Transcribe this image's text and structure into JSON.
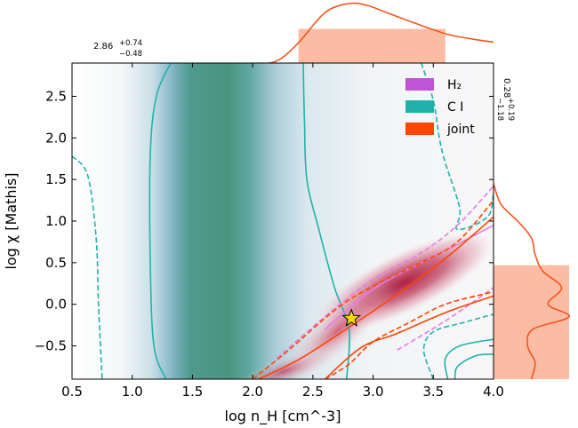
{
  "chart_data": {
    "type": "contour-corner",
    "main_panel": {
      "xlabel": "log n_H [cm^-3]",
      "ylabel": "log χ [Mathis]",
      "xlim": [
        0.5,
        4.0
      ],
      "ylim": [
        -0.9,
        2.9
      ],
      "xticks": [
        0.5,
        1.0,
        1.5,
        2.0,
        2.5,
        3.0,
        3.5,
        4.0
      ],
      "xtick_labels": [
        "0.5",
        "1.0",
        "1.5",
        "2.0",
        "2.5",
        "3.0",
        "3.5",
        "4.0"
      ],
      "yticks": [
        -0.5,
        0.0,
        0.5,
        1.0,
        1.5,
        2.0,
        2.5
      ],
      "ytick_labels": [
        "−0.5",
        "0.0",
        "0.5",
        "1.0",
        "1.5",
        "2.0",
        "2.5"
      ],
      "legend": {
        "position": "top-right",
        "entries": [
          {
            "label": "H₂",
            "color": "#bf55d6"
          },
          {
            "label": "C I",
            "color": "#20b2aa"
          },
          {
            "label": "joint",
            "color": "#ff4500"
          }
        ]
      },
      "best_fit_star": {
        "x": 2.82,
        "y": -0.17,
        "color": "#ffd700"
      },
      "ci_contours": [
        {
          "level": "inner",
          "style": "solid",
          "color": "#20b2aa",
          "points": [
            [
              1.32,
              2.9
            ],
            [
              1.2,
              2.5
            ],
            [
              1.15,
              1.8
            ],
            [
              1.15,
              0.5
            ],
            [
              1.18,
              -0.5
            ],
            [
              1.28,
              -0.9
            ]
          ]
        },
        {
          "level": "inner",
          "style": "solid",
          "color": "#20b2aa",
          "points": [
            [
              2.42,
              2.9
            ],
            [
              2.43,
              2.2
            ],
            [
              2.45,
              1.5
            ],
            [
              2.55,
              0.9
            ],
            [
              2.68,
              0.2
            ],
            [
              2.8,
              -0.3
            ],
            [
              2.78,
              -0.9
            ]
          ]
        },
        {
          "level": "outer",
          "style": "dashed",
          "color": "#20b2aa",
          "points": [
            [
              0.5,
              1.78
            ],
            [
              0.63,
              1.55
            ],
            [
              0.7,
              0.8
            ],
            [
              0.72,
              0.0
            ],
            [
              0.75,
              -0.9
            ]
          ]
        },
        {
          "level": "outer",
          "style": "dashed",
          "color": "#20b2aa",
          "points": [
            [
              3.4,
              2.9
            ],
            [
              3.5,
              2.45
            ],
            [
              3.55,
              2.0
            ],
            [
              3.6,
              1.7
            ],
            [
              3.72,
              1.15
            ],
            [
              3.7,
              0.9
            ],
            [
              3.95,
              1.05
            ],
            [
              4.0,
              1.35
            ]
          ]
        },
        {
          "level": "outer",
          "style": "dashed",
          "color": "#20b2aa",
          "points": [
            [
              3.5,
              -0.9
            ],
            [
              3.42,
              -0.55
            ],
            [
              3.5,
              -0.33
            ],
            [
              3.75,
              -0.22
            ],
            [
              4.0,
              -0.12
            ]
          ]
        },
        {
          "level": "inner",
          "style": "solid",
          "color": "#20b2aa",
          "points": [
            [
              3.62,
              -0.9
            ],
            [
              3.6,
              -0.65
            ],
            [
              3.72,
              -0.5
            ],
            [
              4.0,
              -0.42
            ]
          ]
        },
        {
          "level": "inner",
          "style": "solid",
          "color": "#20b2aa",
          "points": [
            [
              3.68,
              -0.9
            ],
            [
              3.7,
              -0.75
            ],
            [
              3.85,
              -0.62
            ],
            [
              4.0,
              -0.6
            ]
          ]
        }
      ],
      "h2_contours": [
        {
          "level": "outer",
          "style": "dashed",
          "color": "#e57ce8",
          "points": [
            [
              2.2,
              -0.65
            ],
            [
              2.6,
              -0.15
            ],
            [
              3.0,
              0.3
            ],
            [
              3.4,
              0.62
            ],
            [
              3.7,
              0.95
            ],
            [
              4.0,
              1.42
            ]
          ]
        },
        {
          "level": "outer",
          "style": "dashed",
          "color": "#e57ce8",
          "points": [
            [
              3.2,
              -0.55
            ],
            [
              3.6,
              -0.2
            ],
            [
              4.0,
              0.2
            ]
          ]
        },
        {
          "level": "inner",
          "style": "solid",
          "color": "#e57ce8",
          "points": [
            [
              2.6,
              -0.3
            ],
            [
              3.0,
              0.18
            ],
            [
              3.4,
              0.5
            ],
            [
              3.7,
              0.72
            ],
            [
              4.0,
              0.95
            ]
          ]
        }
      ],
      "joint_contours": [
        {
          "level": "outer",
          "style": "dashed",
          "color": "#ff4500",
          "points": [
            [
              2.0,
              -0.9
            ],
            [
              2.3,
              -0.55
            ],
            [
              2.7,
              -0.05
            ],
            [
              3.0,
              0.22
            ],
            [
              3.4,
              0.5
            ],
            [
              3.7,
              0.75
            ],
            [
              4.0,
              1.25
            ]
          ]
        },
        {
          "level": "outer",
          "style": "dashed",
          "color": "#ff4500",
          "points": [
            [
              2.6,
              -0.9
            ],
            [
              2.8,
              -0.72
            ],
            [
              3.0,
              -0.45
            ],
            [
              3.3,
              -0.22
            ],
            [
              3.6,
              0.0
            ],
            [
              4.0,
              0.15
            ]
          ]
        },
        {
          "level": "inner",
          "style": "solid",
          "color": "#ff4500",
          "points": [
            [
              2.05,
              -0.9
            ],
            [
              2.4,
              -0.65
            ],
            [
              2.9,
              -0.18
            ],
            [
              3.2,
              0.12
            ],
            [
              3.6,
              0.55
            ],
            [
              4.0,
              1.05
            ]
          ]
        },
        {
          "level": "inner",
          "style": "solid",
          "color": "#ff4500",
          "points": [
            [
              2.6,
              -0.9
            ],
            [
              2.9,
              -0.52
            ],
            [
              3.2,
              -0.35
            ],
            [
              3.6,
              -0.1
            ],
            [
              4.0,
              0.1
            ]
          ]
        }
      ]
    },
    "top_marginal": {
      "parameter": "log n_H",
      "annotation_value": "2.86",
      "annotation_upper": "+0.74",
      "annotation_lower": "−0.48",
      "shaded_range": [
        2.38,
        3.6
      ],
      "x": [
        0.5,
        1.0,
        1.5,
        2.0,
        2.2,
        2.38,
        2.6,
        2.8,
        2.95,
        3.1,
        3.3,
        3.6,
        3.8,
        4.0
      ],
      "density": [
        0.0,
        0.0,
        0.0,
        0.01,
        0.05,
        0.35,
        0.85,
        1.0,
        0.97,
        0.86,
        0.71,
        0.5,
        0.42,
        0.36
      ]
    },
    "right_marginal": {
      "parameter": "log χ",
      "annotation_value": "0.28",
      "annotation_upper": "+0.19",
      "annotation_lower": "−1.18",
      "shaded_range": [
        -0.9,
        0.47
      ],
      "y": [
        -0.9,
        -0.7,
        -0.5,
        -0.3,
        -0.15,
        0.0,
        0.2,
        0.4,
        0.6,
        0.8,
        1.0,
        1.2,
        1.45
      ],
      "density": [
        0.5,
        0.55,
        0.45,
        0.52,
        1.0,
        0.72,
        0.9,
        0.65,
        0.55,
        0.5,
        0.32,
        0.1,
        0.0
      ]
    }
  }
}
